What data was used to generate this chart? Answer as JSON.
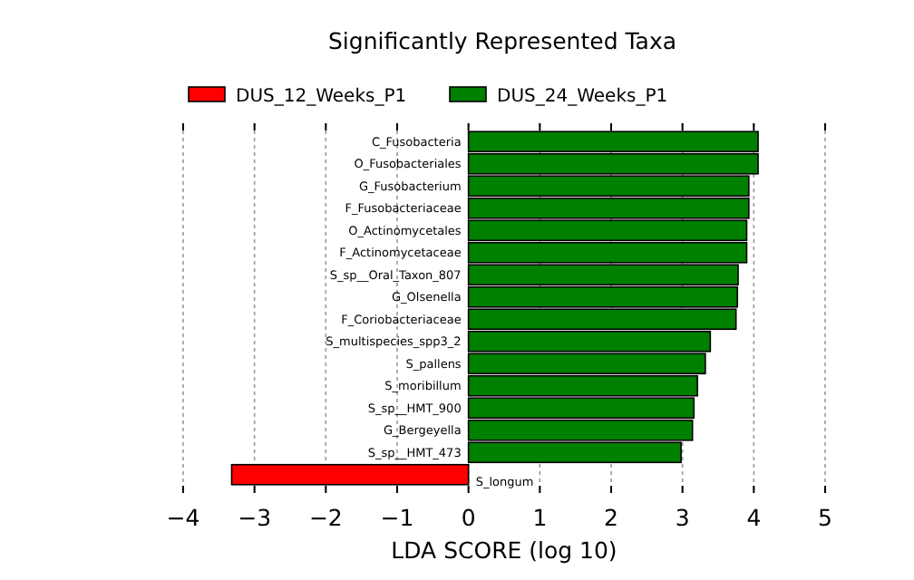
{
  "chart_data": {
    "type": "bar",
    "orientation": "horizontal",
    "title": "Significantly Represented Taxa",
    "xlabel": "LDA SCORE (log 10)",
    "categories": [
      "C_Fusobacteria",
      "O_Fusobacteriales",
      "G_Fusobacterium",
      "F_Fusobacteriaceae",
      "O_Actinomycetales",
      "F_Actinomycetaceae",
      "S_sp__Oral_Taxon_807",
      "G_Olsenella",
      "F_Coriobacteriaceae",
      "S_multispecies_spp3_2",
      "S_pallens",
      "S_moribillum",
      "S_sp__HMT_900",
      "G_Bergeyella",
      "S_sp__HMT_473",
      "S_longum"
    ],
    "series": [
      {
        "name": "DUS_12_Weeks_P1",
        "color": "#ff0000",
        "values": [
          null,
          null,
          null,
          null,
          null,
          null,
          null,
          null,
          null,
          null,
          null,
          null,
          null,
          null,
          null,
          -3.32
        ]
      },
      {
        "name": "DUS_24_Weeks_P1",
        "color": "#008000",
        "values": [
          4.06,
          4.06,
          3.93,
          3.93,
          3.9,
          3.9,
          3.78,
          3.77,
          3.75,
          3.39,
          3.32,
          3.21,
          3.16,
          3.14,
          2.98,
          null
        ]
      }
    ],
    "xlim": [
      -4,
      5
    ],
    "xticks": [
      {
        "value": -4,
        "label": "−4"
      },
      {
        "value": -3,
        "label": "−3"
      },
      {
        "value": -2,
        "label": "−2"
      },
      {
        "value": -1,
        "label": "−1"
      },
      0,
      1,
      2,
      3,
      4,
      5
    ],
    "grid": "x",
    "legend": "top"
  }
}
